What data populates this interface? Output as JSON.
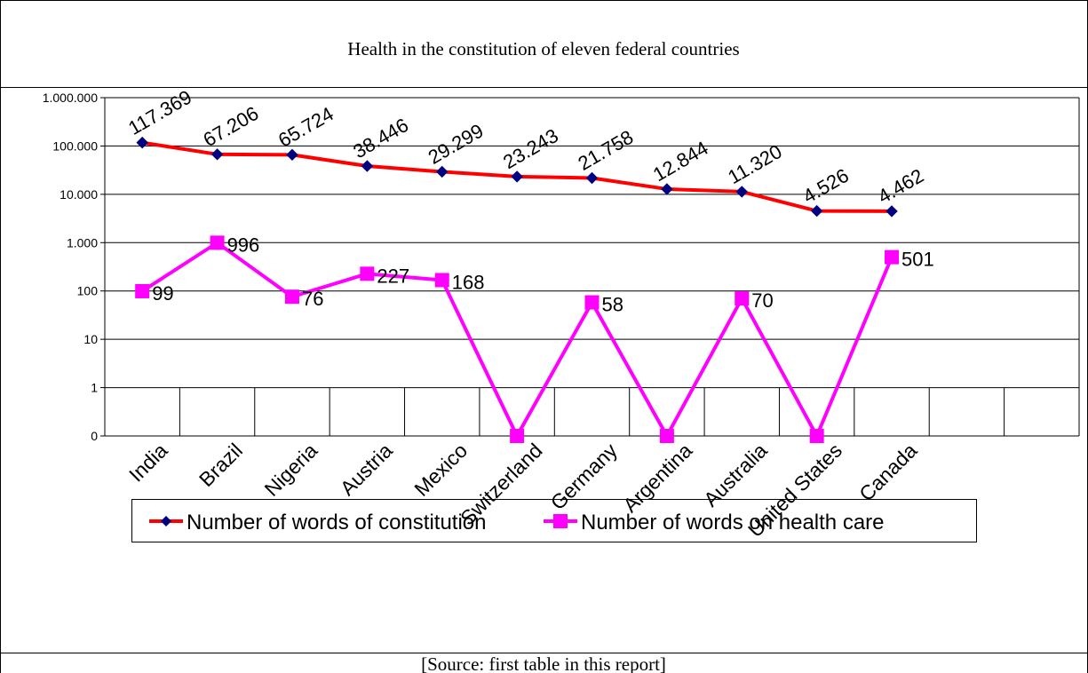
{
  "chart_data": {
    "type": "line",
    "title": "Health in the constitution of eleven federal countries",
    "source": "[Source: first table in this report]",
    "categories": [
      "India",
      "Brazil",
      "Nigeria",
      "Austria",
      "Mexico",
      "Switzerland",
      "Germany",
      "Argentina",
      "Australia",
      "United States",
      "Canada",
      null,
      null
    ],
    "log_scale": true,
    "grid": true,
    "legend": "bottom",
    "ylim": [
      0.1,
      1000000
    ],
    "yticks": [
      {
        "value": 0.1,
        "label": "0"
      },
      1,
      10,
      100,
      {
        "value": 1000,
        "label": "1.000"
      },
      {
        "value": 10000,
        "label": "10.000"
      },
      {
        "value": 100000,
        "label": "100.000"
      },
      {
        "value": 1000000,
        "label": "1.000.000"
      }
    ],
    "series": [
      {
        "name": "Number of words of constitution",
        "color": "#ff0000",
        "marker_color": "#000080",
        "marker": "diamond",
        "values": [
          117369,
          67206,
          65724,
          38446,
          29299,
          23243,
          21758,
          12844,
          11320,
          4526,
          4462,
          null,
          null
        ],
        "value_labels": [
          "117.369",
          "67.206",
          "65.724",
          "38.446",
          "29.299",
          "23.243",
          "21.758",
          "12.844",
          "11.320",
          "4.526",
          "4.462",
          null,
          null
        ]
      },
      {
        "name": "Number of words on health care",
        "color": "#ff00ff",
        "marker_color": "#ff00ff",
        "marker": "square",
        "values": [
          99,
          996,
          76,
          227,
          168,
          0.1,
          58,
          0.1,
          70,
          0.1,
          501,
          null,
          null
        ],
        "value_labels": [
          "99",
          "996",
          "76",
          "227",
          "168",
          null,
          "58",
          null,
          "70",
          null,
          "501",
          null,
          null
        ]
      }
    ]
  }
}
